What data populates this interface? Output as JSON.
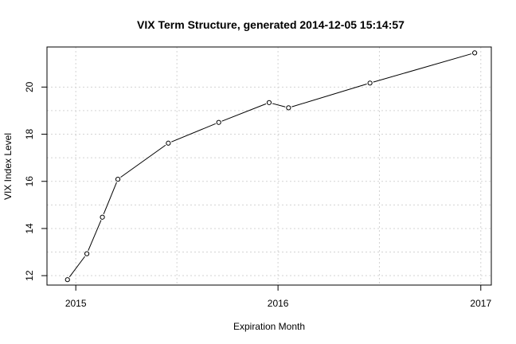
{
  "chart_data": {
    "type": "line",
    "title": "VIX Term Structure, generated  2014-12-05 15:14:57",
    "xlabel": "Expiration Month",
    "ylabel": "VIX Index Level",
    "x_ticks": [
      "2015",
      "2016",
      "2017"
    ],
    "y_ticks": [
      12,
      14,
      16,
      18,
      20
    ],
    "xlim": [
      "2014-11-10",
      "2017-01-20"
    ],
    "ylim": [
      11.6,
      21.7
    ],
    "grid": true,
    "series": [
      {
        "points": [
          {
            "x": "2014-12-17",
            "y": 11.83
          },
          {
            "x": "2015-01-21",
            "y": 12.93
          },
          {
            "x": "2015-02-18",
            "y": 14.48
          },
          {
            "x": "2015-03-18",
            "y": 16.09
          },
          {
            "x": "2015-06-17",
            "y": 17.62
          },
          {
            "x": "2015-09-16",
            "y": 18.5
          },
          {
            "x": "2015-12-16",
            "y": 19.34
          },
          {
            "x": "2016-01-20",
            "y": 19.12
          },
          {
            "x": "2016-06-15",
            "y": 20.17
          },
          {
            "x": "2016-12-21",
            "y": 21.45
          }
        ]
      }
    ]
  }
}
